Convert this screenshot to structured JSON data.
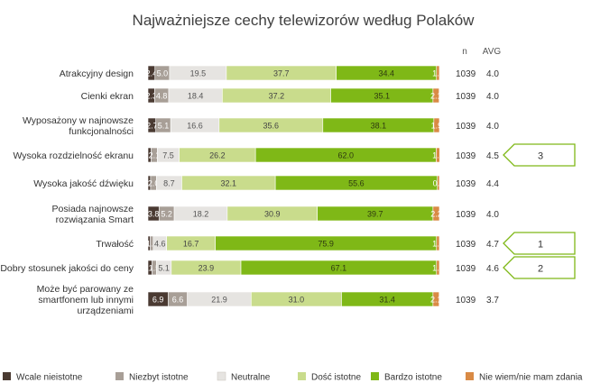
{
  "chart_data": {
    "type": "bar",
    "stacked": true,
    "orientation": "horizontal",
    "title": "Najważniejsze cechy telewizorów według Polaków",
    "column_headers": {
      "n": "n",
      "avg": "AVG"
    },
    "categories": [
      "Atrakcyjny design",
      "Cienki ekran",
      "Wyposażony w najnowsze funkcjonalności",
      "Wysoka rozdzielność ekranu",
      "Wysoka jakość dźwięku",
      "Posiada najnowsze rozwiązania Smart",
      "Trwałość",
      "Dobry stosunek jakości do ceny",
      "Może być parowany ze smartfonem lub innymi urządzeniami"
    ],
    "category_lines": [
      [
        "Atrakcyjny design"
      ],
      [
        "Cienki ekran"
      ],
      [
        "Wyposażony w najnowsze",
        "funkcjonalności"
      ],
      [
        "Wysoka rozdzielność ekranu"
      ],
      [
        "Wysoka jakość dźwięku"
      ],
      [
        "Posiada najnowsze",
        "rozwiązania Smart"
      ],
      [
        "Trwałość"
      ],
      [
        "Dobry stosunek jakości do ceny"
      ],
      [
        "Może być parowany ze",
        "smartfonem lub innymi",
        "urządzeniami"
      ]
    ],
    "series": [
      {
        "name": "Wcale nieistotne",
        "color": "#4a3a32",
        "values": [
          2.4,
          2.3,
          2.7,
          1.1,
          0.9,
          3.8,
          0.8,
          1.4,
          6.9
        ]
      },
      {
        "name": "Niezbyt istotne",
        "color": "#a89f97",
        "values": [
          5.0,
          4.8,
          5.1,
          2.1,
          2.0,
          5.2,
          1.0,
          1.5,
          6.6
        ]
      },
      {
        "name": "Neutralne",
        "color": "#e6e4e1",
        "values": [
          19.5,
          18.4,
          16.6,
          7.5,
          8.7,
          18.2,
          4.6,
          5.1,
          21.9
        ]
      },
      {
        "name": "Dość istotne",
        "color": "#c9dc8c",
        "values": [
          37.7,
          37.2,
          35.6,
          26.2,
          32.1,
          30.9,
          16.7,
          23.9,
          31.0
        ]
      },
      {
        "name": "Bardzo istotne",
        "color": "#7fb817",
        "values": [
          34.4,
          35.1,
          38.1,
          62.0,
          55.6,
          39.7,
          75.9,
          67.1,
          31.4
        ]
      },
      {
        "name": "Nie wiem/nie mam zdania",
        "color": "#d98a45",
        "values": [
          1.0,
          2.1,
          1.9,
          1.2,
          0.7,
          2.2,
          1.0,
          1.0,
          2.1
        ]
      }
    ],
    "n": [
      "1039",
      "1039",
      "1039",
      "1039",
      "1039",
      "1039",
      "1039",
      "1039",
      "1039"
    ],
    "avg": [
      "4.0",
      "4.0",
      "4.0",
      "4.5",
      "4.4",
      "4.0",
      "4.7",
      "4.6",
      "3.7"
    ],
    "ranks": [
      {
        "row": 3,
        "label": "3"
      },
      {
        "row": 6,
        "label": "1"
      },
      {
        "row": 7,
        "label": "2"
      }
    ],
    "xlim": [
      0,
      100
    ],
    "legend_position": "bottom",
    "rank_outline_color": "#7fb817"
  }
}
